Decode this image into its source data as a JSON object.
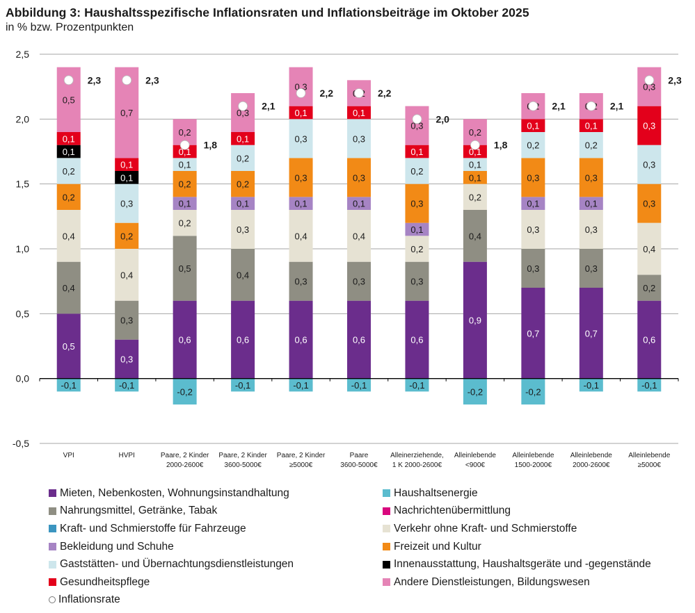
{
  "chart_data": {
    "type": "bar",
    "stacked": true,
    "title": "Abbildung 3: Haushaltsspezifische Inflationsraten und Inflationsbeiträge im Oktober 2025",
    "subtitle": "in % bzw. Prozentpunkten",
    "xlabel": "",
    "ylabel": "",
    "ylim": [
      -0.5,
      2.5
    ],
    "yticks": [
      -0.5,
      0.0,
      0.5,
      1.0,
      1.5,
      2.0,
      2.5
    ],
    "ytick_labels": [
      "-0,5",
      "0,0",
      "0,5",
      "1,0",
      "1,5",
      "2,0",
      "2,5"
    ],
    "grid": true,
    "legend_position": "bottom",
    "categories": [
      [
        "VPI"
      ],
      [
        "HVPI"
      ],
      [
        "Paare, 2  Kinder",
        "2000-2600€"
      ],
      [
        "Paare, 2  Kinder",
        "3600-5000€"
      ],
      [
        "Paare, 2  Kinder",
        "≥5000€"
      ],
      [
        "Paare",
        "3600-5000€"
      ],
      [
        "Alleinerziehende,",
        "1 K 2000-2600€"
      ],
      [
        "Alleinlebende",
        "<900€"
      ],
      [
        "Alleinlebende",
        "1500-2000€"
      ],
      [
        "Alleinlebende",
        "2000-2600€"
      ],
      [
        "Alleinlebende",
        "≥5000€"
      ]
    ],
    "series": [
      {
        "key": "mieten",
        "name": "Mieten, Nebenkosten, Wohnungsinstandhaltung",
        "color": "#6b2d8c",
        "label_color": "#ffffff",
        "values": [
          0.5,
          0.3,
          0.6,
          0.6,
          0.6,
          0.6,
          0.6,
          0.9,
          0.7,
          0.7,
          0.6
        ]
      },
      {
        "key": "nahrung",
        "name": "Nahrungsmittel, Getränke, Tabak",
        "color": "#8f8e83",
        "label_color": "#1a1a1a",
        "values": [
          0.4,
          0.3,
          0.5,
          0.4,
          0.3,
          0.3,
          0.3,
          0.4,
          0.3,
          0.3,
          0.2
        ]
      },
      {
        "key": "verkehr",
        "name": "Verkehr ohne Kraft- und Schmierstoffe",
        "color": "#e6e2d3",
        "label_color": "#1a1a1a",
        "values": [
          0.4,
          0.4,
          0.2,
          0.3,
          0.4,
          0.4,
          0.2,
          0.2,
          0.3,
          0.3,
          0.4
        ]
      },
      {
        "key": "bekleidung",
        "name": "Bekleidung und Schuhe",
        "color": "#a684c4",
        "label_color": "#1a1a1a",
        "values": [
          0.0,
          0.0,
          0.1,
          0.1,
          0.1,
          0.1,
          0.1,
          0.0,
          0.1,
          0.1,
          0.0
        ]
      },
      {
        "key": "freizeit",
        "name": "Freizeit und Kultur",
        "color": "#f28a16",
        "label_color": "#1a1a1a",
        "values": [
          0.2,
          0.2,
          0.2,
          0.2,
          0.3,
          0.3,
          0.3,
          0.1,
          0.3,
          0.3,
          0.3
        ]
      },
      {
        "key": "gaststaetten",
        "name": "Gaststätten- und Übernachtungsdienstleistungen",
        "color": "#cde6ec",
        "label_color": "#1a1a1a",
        "values": [
          0.2,
          0.3,
          0.1,
          0.2,
          0.3,
          0.3,
          0.2,
          0.1,
          0.2,
          0.2,
          0.3
        ]
      },
      {
        "key": "innenausstattung",
        "name": "Innenausstattung, Haushaltsgeräte und -gegenstände",
        "color": "#000000",
        "label_color": "#ffffff",
        "values": [
          0.1,
          0.1,
          0.0,
          0.0,
          0.0,
          0.0,
          0.0,
          0.0,
          0.0,
          0.0,
          0.0
        ]
      },
      {
        "key": "gesundheit",
        "name": "Gesundheitspflege",
        "color": "#e3001b",
        "label_color": "#ffffff",
        "values": [
          0.1,
          0.1,
          0.1,
          0.1,
          0.1,
          0.1,
          0.1,
          0.1,
          0.1,
          0.1,
          0.3
        ]
      },
      {
        "key": "andere",
        "name": "Andere Dienstleistungen, Bildungswesen",
        "color": "#e584b6",
        "label_color": "#1a1a1a",
        "values": [
          0.5,
          0.7,
          0.2,
          0.3,
          0.3,
          0.2,
          0.3,
          0.2,
          0.2,
          0.2,
          0.3
        ]
      },
      {
        "key": "haushaltsenergie",
        "name": "Haushaltsenergie",
        "color": "#5bbcce",
        "label_color": "#1a1a1a",
        "values": [
          -0.1,
          -0.1,
          -0.2,
          -0.1,
          -0.1,
          -0.1,
          -0.1,
          -0.2,
          -0.2,
          -0.1,
          -0.1
        ]
      },
      {
        "key": "nachrichten",
        "name": "Nachrichtenübermittlung",
        "color": "#d9077e",
        "label_color": "#ffffff",
        "values": [
          0,
          0,
          0,
          0,
          0,
          0,
          0,
          0,
          0,
          0,
          0
        ]
      },
      {
        "key": "kraftstoffe",
        "name": "Kraft- und Schmierstoffe für Fahrzeuge",
        "color": "#3b95c0",
        "label_color": "#ffffff",
        "values": [
          0,
          0,
          0,
          0,
          0,
          0,
          0,
          0,
          0,
          0,
          0
        ]
      }
    ],
    "inflation_rate": {
      "name": "Inflationsrate",
      "values": [
        2.3,
        2.3,
        1.8,
        2.1,
        2.2,
        2.2,
        2.0,
        1.8,
        2.1,
        2.1,
        2.3
      ],
      "labels": [
        "2,3",
        "2,3",
        "1,8",
        "2,1",
        "2,2",
        "2,2",
        "2,0",
        "1,8",
        "2,1",
        "2,1",
        "2,3"
      ]
    },
    "stack_order": [
      "mieten",
      "nahrung",
      "verkehr",
      "bekleidung",
      "freizeit",
      "gaststaetten",
      "innenausstattung",
      "gesundheit",
      "andere"
    ],
    "negative_order": [
      "haushaltsenergie"
    ],
    "legend": {
      "left": [
        {
          "type": "square",
          "color": "#6b2d8c",
          "label": "Mieten, Nebenkosten, Wohnungsinstandhaltung"
        },
        {
          "type": "square",
          "color": "#8f8e83",
          "label": "Nahrungsmittel, Getränke, Tabak"
        },
        {
          "type": "square",
          "color": "#3b95c0",
          "label": "Kraft- und Schmierstoffe für Fahrzeuge"
        },
        {
          "type": "square",
          "color": "#a684c4",
          "label": "Bekleidung und Schuhe"
        },
        {
          "type": "square",
          "color": "#cde6ec",
          "label": "Gaststätten- und Übernachtungsdienstleistungen"
        },
        {
          "type": "square",
          "color": "#e3001b",
          "label": "Gesundheitspflege"
        },
        {
          "type": "circle",
          "color": "#ffffff",
          "label": "Inflationsrate"
        }
      ],
      "right": [
        {
          "type": "square",
          "color": "#5bbcce",
          "label": "Haushaltsenergie"
        },
        {
          "type": "square",
          "color": "#d9077e",
          "label": "Nachrichtenübermittlung"
        },
        {
          "type": "square",
          "color": "#e6e2d3",
          "label": "Verkehr ohne Kraft- und Schmierstoffe"
        },
        {
          "type": "square",
          "color": "#f28a16",
          "label": "Freizeit und Kultur"
        },
        {
          "type": "square",
          "color": "#000000",
          "label": "Innenausstattung, Haushaltsgeräte und -gegenstände"
        },
        {
          "type": "square",
          "color": "#e584b6",
          "label": "Andere Dienstleistungen, Bildungswesen"
        }
      ]
    }
  }
}
